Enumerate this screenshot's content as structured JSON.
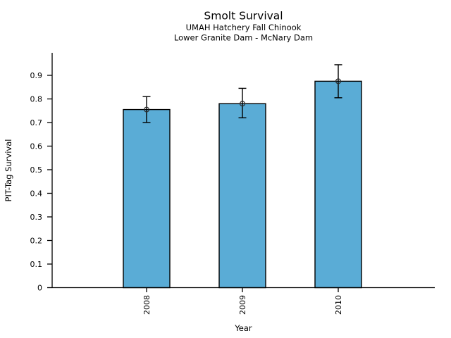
{
  "chart_data": {
    "type": "bar",
    "title": "Smolt Survival",
    "subtitle1": "UMAH Hatchery Fall Chinook",
    "subtitle2": "Lower Granite Dam - McNary Dam",
    "xlabel": "Year",
    "ylabel": "PIT-Tag Survival",
    "categories": [
      "2008",
      "2009",
      "2010"
    ],
    "values": [
      0.755,
      0.78,
      0.875
    ],
    "error_low": [
      0.7,
      0.72,
      0.805
    ],
    "error_high": [
      0.81,
      0.845,
      0.945
    ],
    "marker": "open-circle",
    "ylim": [
      0,
      1.0
    ],
    "yticks": [
      0,
      0.1,
      0.2,
      0.3,
      0.4,
      0.5,
      0.6,
      0.7,
      0.8,
      0.9
    ],
    "ytick_labels": [
      "0",
      "0.1",
      "0.2",
      "0.3",
      "0.4",
      "0.5",
      "0.6",
      "0.7",
      "0.8",
      "0.9"
    ],
    "grid": false,
    "legend": null,
    "bar_color": "#5AACD6",
    "bar_edge_color": "#000000",
    "error_color": "#000000",
    "axis_color": "#000000",
    "background_color": "#ffffff"
  }
}
